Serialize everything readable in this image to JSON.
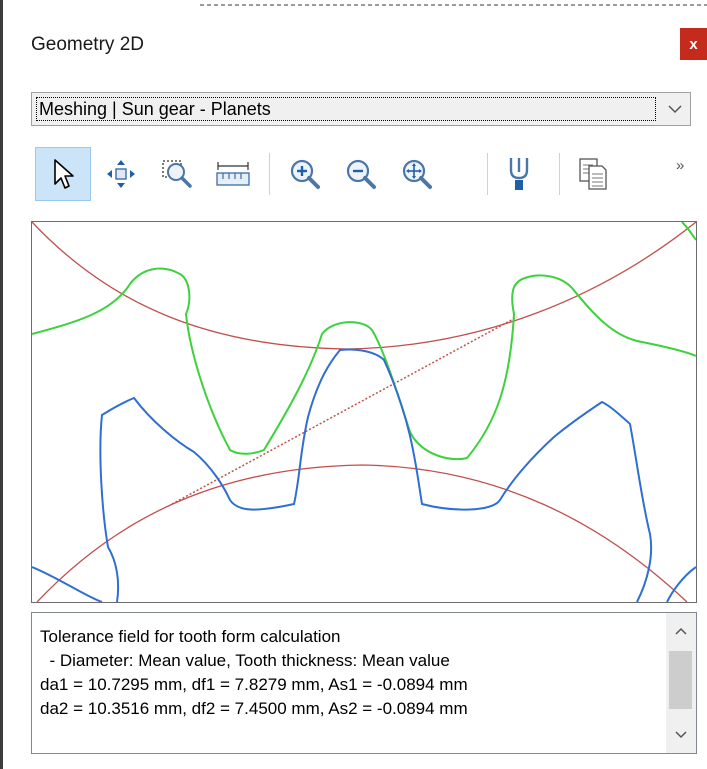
{
  "window": {
    "title": "Geometry 2D",
    "close_label": "x"
  },
  "view_select": {
    "value": "Meshing | Sun gear - Planets"
  },
  "toolbar": {
    "more_label": "»",
    "tools": [
      {
        "name": "select-pointer",
        "icon": "cursor-arrow-icon",
        "active": true
      },
      {
        "name": "pan",
        "icon": "pan-arrows-icon"
      },
      {
        "name": "zoom-window",
        "icon": "zoom-window-icon"
      },
      {
        "name": "measure",
        "icon": "ruler-icon"
      },
      {
        "name": "zoom-in",
        "icon": "zoom-in-icon"
      },
      {
        "name": "zoom-out",
        "icon": "zoom-out-icon"
      },
      {
        "name": "zoom-fit",
        "icon": "zoom-fit-icon"
      },
      {
        "name": "properties",
        "icon": "probe-icon"
      },
      {
        "name": "copy",
        "icon": "copy-icon"
      }
    ]
  },
  "colors": {
    "sun_gear": "#2f6fcf",
    "planet_gear": "#3ed13e",
    "reference_circle": "#c0504d",
    "accent": "#cce4f7",
    "close": "#c42b1c"
  },
  "info": {
    "lines": [
      "Tolerance field for tooth form calculation",
      "  - Diameter: Mean value, Tooth thickness: Mean value",
      "da1 = 10.7295 mm, df1 = 7.8279 mm, As1 = -0.0894 mm",
      "da2 = 10.3516 mm, df2 = 7.4500 mm, As2 = -0.0894 mm"
    ]
  }
}
